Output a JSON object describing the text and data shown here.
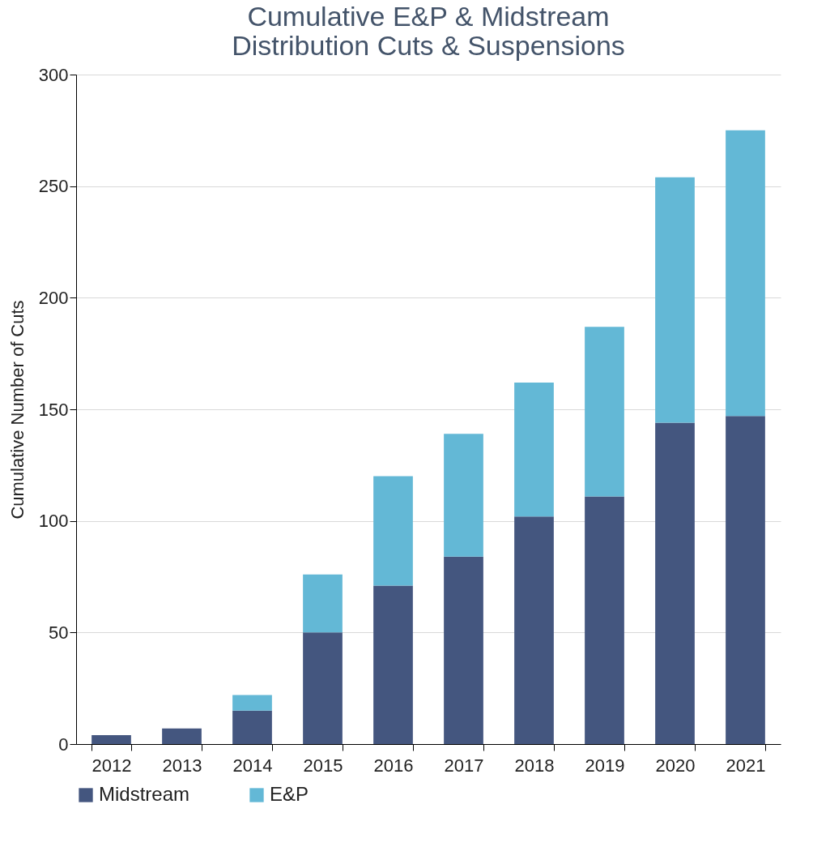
{
  "chart_data": {
    "type": "bar",
    "title": "Cumulative E&P & Midstream\nDistribution Cuts & Suspensions",
    "ylabel": "Cumulative Number of Cuts",
    "categories": [
      "2012",
      "2013",
      "2014",
      "2015",
      "2016",
      "2017",
      "2018",
      "2019",
      "2020",
      "2021"
    ],
    "series": [
      {
        "name": "Midstream",
        "color": "#44567f",
        "values": [
          4,
          7,
          15,
          50,
          71,
          84,
          102,
          111,
          144,
          147
        ]
      },
      {
        "name": "E&P",
        "color": "#63b8d6",
        "values": [
          0,
          0,
          7,
          26,
          49,
          55,
          60,
          76,
          110,
          128
        ]
      }
    ],
    "stacked": true,
    "ylim": [
      0,
      300
    ],
    "yticks": [
      0,
      50,
      100,
      150,
      200,
      250,
      300
    ],
    "grid": "y",
    "legend": "bottom"
  }
}
